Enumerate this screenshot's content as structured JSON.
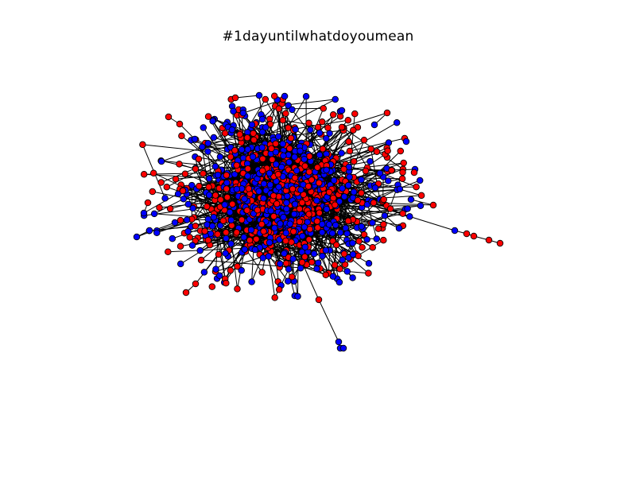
{
  "figure": {
    "title": "#1dayuntilwhatdoyoumean"
  },
  "legend": {
    "node_colors": {
      "red": "#ff0000",
      "blue": "#0000ff"
    },
    "edge_color": "#000000",
    "node_stroke": "#000000"
  },
  "network": {
    "type": "network-graph",
    "layout": "spring",
    "node_count_estimate": 900,
    "colors_by_group": [
      "red",
      "blue"
    ],
    "outlier_chains": [
      "chain-right-long",
      "chain-bottom",
      "chain-left-bottom",
      "chain-top-left",
      "chain-right-top"
    ]
  }
}
